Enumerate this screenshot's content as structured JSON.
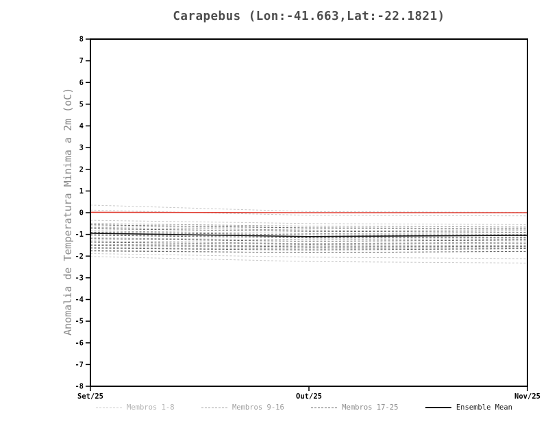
{
  "chart_data": {
    "type": "line",
    "title": "Carapebus (Lon:-41.663,Lat:-22.1821)",
    "ylabel": "Anomalia de Temperatura Minima a 2m (oC)",
    "xlabel": "",
    "ylim": [
      -8,
      8
    ],
    "yticks": [
      8,
      7,
      6,
      5,
      4,
      3,
      2,
      1,
      0,
      -1,
      -2,
      -3,
      -4,
      -5,
      -6,
      -7,
      -8
    ],
    "x": [
      0,
      1,
      2
    ],
    "xticklabels": [
      "Set/25",
      "Out/25",
      "Nov/25"
    ],
    "grid": false,
    "legend_position": "bottom",
    "frame_color": "#000000",
    "tick_label_color": "#000000",
    "series": [
      {
        "name": "Membros 1-8",
        "color": "#c8c8c8",
        "style": "dashed",
        "width": 1,
        "members": [
          [
            0.35,
            0.05,
            0.02
          ],
          [
            0.12,
            -0.12,
            -0.15
          ],
          [
            -0.35,
            -0.5,
            -0.55
          ],
          [
            -0.62,
            -0.72,
            -0.78
          ],
          [
            -1.52,
            -1.62,
            -1.58
          ],
          [
            -1.72,
            -1.85,
            -1.78
          ],
          [
            -1.88,
            -2.05,
            -2.12
          ],
          [
            -2.02,
            -2.25,
            -2.32
          ]
        ]
      },
      {
        "name": "Membros 9-16",
        "color": "#9e9e9e",
        "style": "dashed",
        "width": 1,
        "members": [
          [
            -0.5,
            -0.62,
            -0.66
          ],
          [
            -0.68,
            -0.8,
            -0.84
          ],
          [
            -0.84,
            -0.96,
            -1.0
          ],
          [
            -1.0,
            -1.12,
            -1.12
          ],
          [
            -1.16,
            -1.26,
            -1.22
          ],
          [
            -1.3,
            -1.42,
            -1.36
          ],
          [
            -1.46,
            -1.52,
            -1.5
          ],
          [
            -1.6,
            -1.68,
            -1.62
          ]
        ]
      },
      {
        "name": "Membros 17-25",
        "color": "#5f5f5f",
        "style": "dashed",
        "width": 1,
        "members": [
          [
            -0.56,
            -0.7,
            -0.72
          ],
          [
            -0.74,
            -0.86,
            -0.9
          ],
          [
            -0.9,
            -1.02,
            -1.06
          ],
          [
            -1.04,
            -1.16,
            -1.16
          ],
          [
            -1.2,
            -1.32,
            -1.26
          ],
          [
            -1.36,
            -1.46,
            -1.42
          ],
          [
            -1.5,
            -1.58,
            -1.56
          ],
          [
            -1.64,
            -1.72,
            -1.66
          ],
          [
            -1.76,
            -1.84,
            -1.78
          ]
        ]
      },
      {
        "name": "Ensemble Mean",
        "color": "#141414",
        "style": "solid",
        "width": 1.6,
        "members": [
          [
            -0.95,
            -1.1,
            -1.04
          ]
        ]
      },
      {
        "name": "zero-reference-line",
        "color": "#e03c31",
        "style": "solid",
        "width": 1.6,
        "members": [
          [
            0.02,
            0.0,
            0.0
          ]
        ]
      }
    ]
  },
  "legend": {
    "items": [
      {
        "label": "Membros 1-8",
        "color": "#c8c8c8",
        "text_color": "#b3b3b3",
        "style": "dashed"
      },
      {
        "label": "Membros 9-16",
        "color": "#9e9e9e",
        "text_color": "#9e9e9e",
        "style": "dashed"
      },
      {
        "label": "Membros 17-25",
        "color": "#5f5f5f",
        "text_color": "#8a8a8a",
        "style": "dashed"
      },
      {
        "label": "Ensemble Mean",
        "color": "#141414",
        "text_color": "#1a1a1a",
        "style": "solid"
      }
    ]
  }
}
